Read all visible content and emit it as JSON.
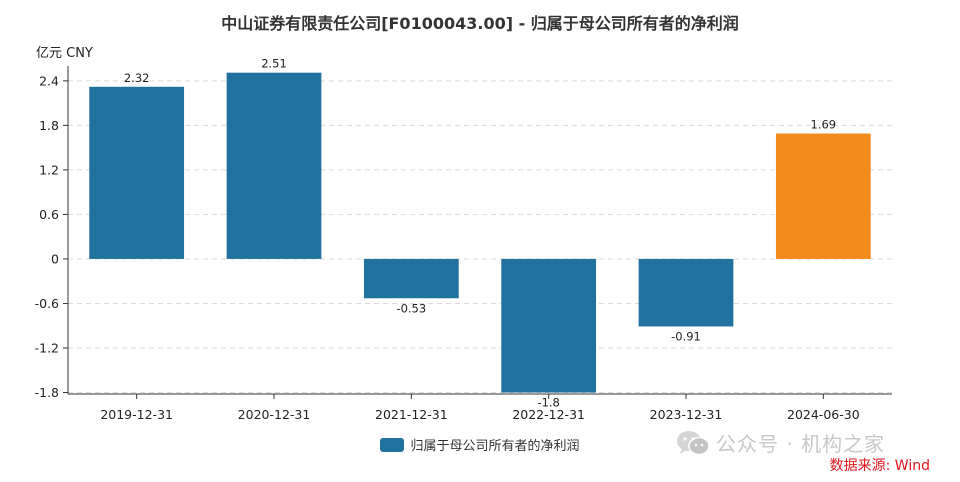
{
  "chart_data": {
    "type": "bar",
    "title": "中山证券有限责任公司[F0100043.00] - 归属于母公司所有者的净利润",
    "unit_label": "亿元  CNY",
    "categories": [
      "2019-12-31",
      "2020-12-31",
      "2021-12-31",
      "2022-12-31",
      "2023-12-31",
      "2024-06-30"
    ],
    "series": [
      {
        "name": "归属于母公司所有者的净利润",
        "values": [
          2.32,
          2.51,
          -0.53,
          -1.8,
          -0.91,
          1.69
        ],
        "data_labels": [
          "2.32",
          "2.51",
          "-0.53",
          "-1.8",
          "-0.91",
          "1.69"
        ]
      }
    ],
    "y_ticks": [
      2.4,
      1.8,
      1.2,
      0.6,
      0,
      -0.6,
      -1.2,
      -1.8
    ],
    "y_tick_labels": [
      "2.4",
      "1.8",
      "1.2",
      "0.6",
      "0",
      "-0.6",
      "-1.2",
      "-1.8"
    ],
    "ylim": [
      -1.82,
      2.6
    ],
    "grid": true,
    "legend_position": "bottom-center",
    "colors": {
      "bar": "#21729f",
      "highlight_bar": "#f28b1b",
      "highlight_index": 5,
      "grid": "#d9d9d9",
      "axis": "#333333"
    }
  },
  "watermark": "公众号 · 机构之家",
  "watermark_icon": "wechat-icon",
  "source": "数据来源: Wind"
}
